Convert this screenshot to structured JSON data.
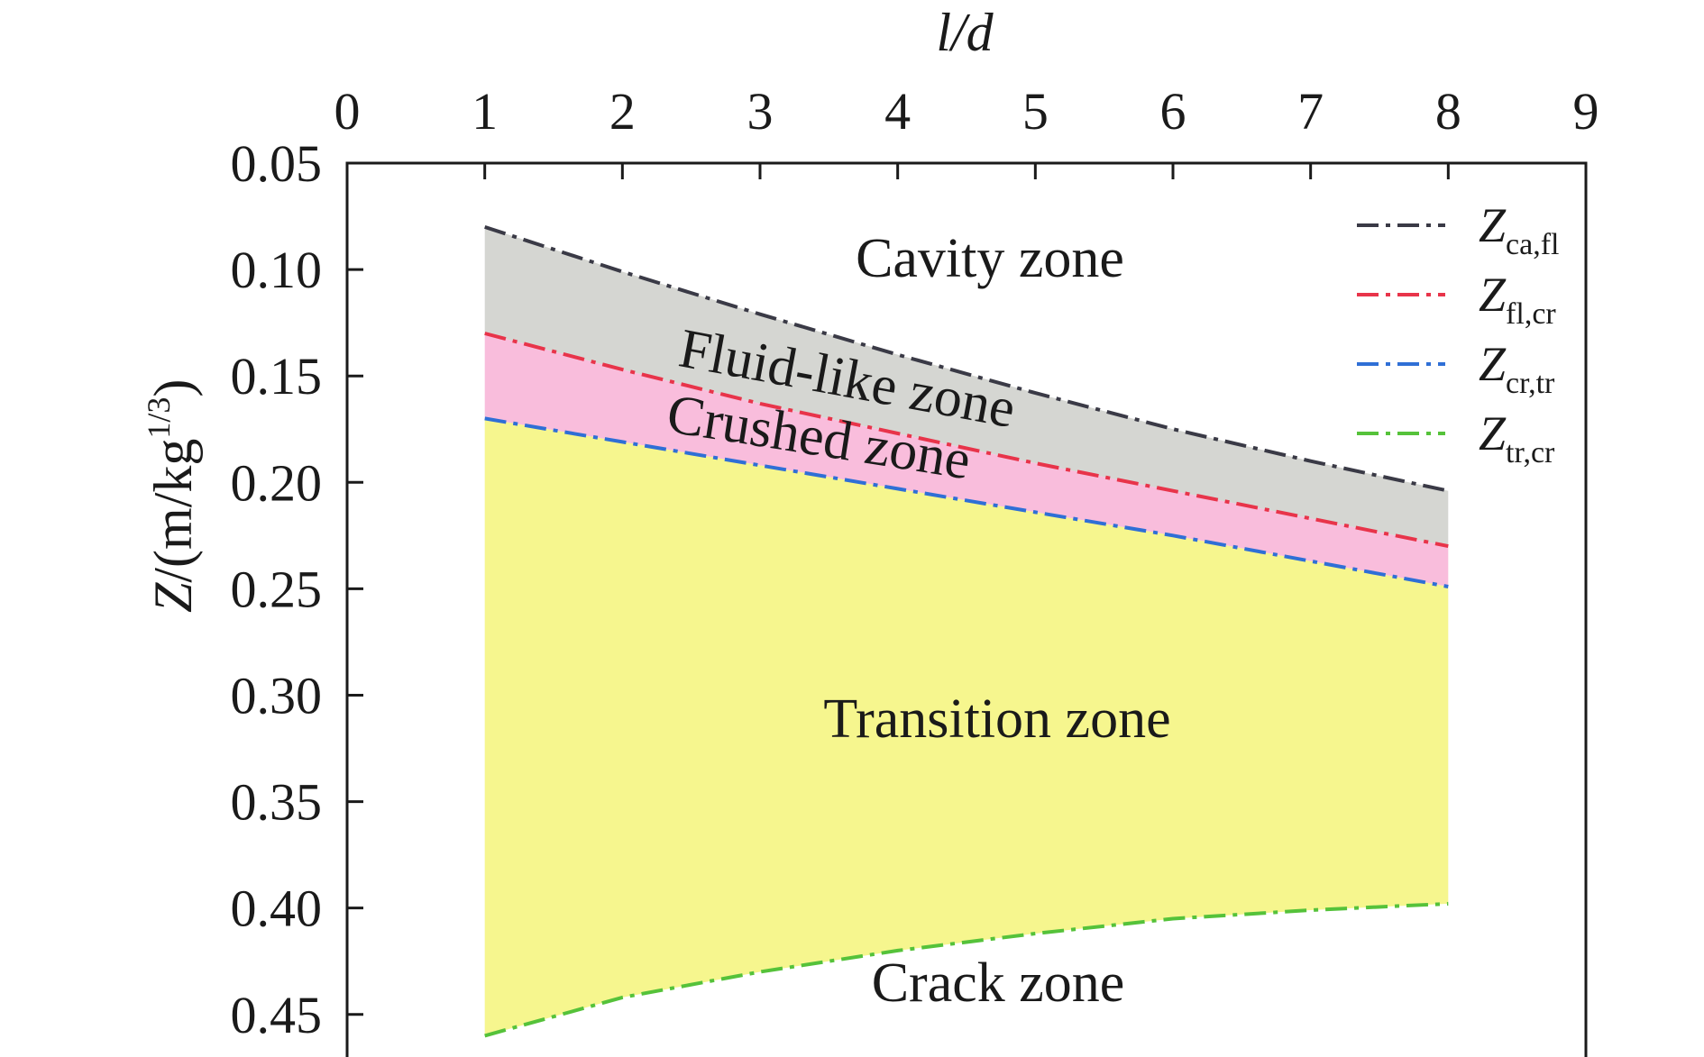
{
  "chart_data": {
    "type": "area",
    "xlabel": "l/d",
    "ylabel": "Z/(m/kg1/3)",
    "xlim": [
      0,
      9
    ],
    "ylim": [
      0.05,
      0.47
    ],
    "y_inverted": true,
    "x_ticks": [
      "0",
      "1",
      "2",
      "3",
      "4",
      "5",
      "6",
      "7",
      "8",
      "9"
    ],
    "y_ticks": [
      "0.05",
      "0.10",
      "0.15",
      "0.20",
      "0.25",
      "0.30",
      "0.35",
      "0.40",
      "0.45"
    ],
    "x": [
      1,
      2,
      3,
      4,
      5,
      6,
      7,
      8
    ],
    "series": [
      {
        "name": "Zca,fl",
        "symbol": "Z",
        "subscript": "ca,fl",
        "color": "#3a3a46",
        "values": [
          0.08,
          0.101,
          0.121,
          0.14,
          0.158,
          0.175,
          0.19,
          0.204
        ]
      },
      {
        "name": "Zfl,cr",
        "symbol": "Z",
        "subscript": "fl,cr",
        "color": "#e8344a",
        "values": [
          0.13,
          0.147,
          0.163,
          0.177,
          0.191,
          0.204,
          0.217,
          0.23
        ]
      },
      {
        "name": "Zcr,tr",
        "symbol": "Z",
        "subscript": "cr,tr",
        "color": "#2f6fd6",
        "values": [
          0.17,
          0.181,
          0.192,
          0.203,
          0.214,
          0.225,
          0.237,
          0.249
        ]
      },
      {
        "name": "Ztr,cr",
        "symbol": "Z",
        "subscript": "tr,cr",
        "color": "#55c23a",
        "values": [
          0.46,
          0.442,
          0.43,
          0.42,
          0.412,
          0.405,
          0.401,
          0.398
        ]
      }
    ],
    "zones": [
      {
        "label": "Cavity zone",
        "fill": ""
      },
      {
        "label": "Fluid-like zone",
        "fill": "#d5d6d2"
      },
      {
        "label": "Crushed zone",
        "fill": "#f9bddc"
      },
      {
        "label": "Transition zone",
        "fill": "#f6f68e"
      },
      {
        "label": "Crack zone",
        "fill": ""
      }
    ],
    "legend_position": "top-right",
    "grid": false
  }
}
